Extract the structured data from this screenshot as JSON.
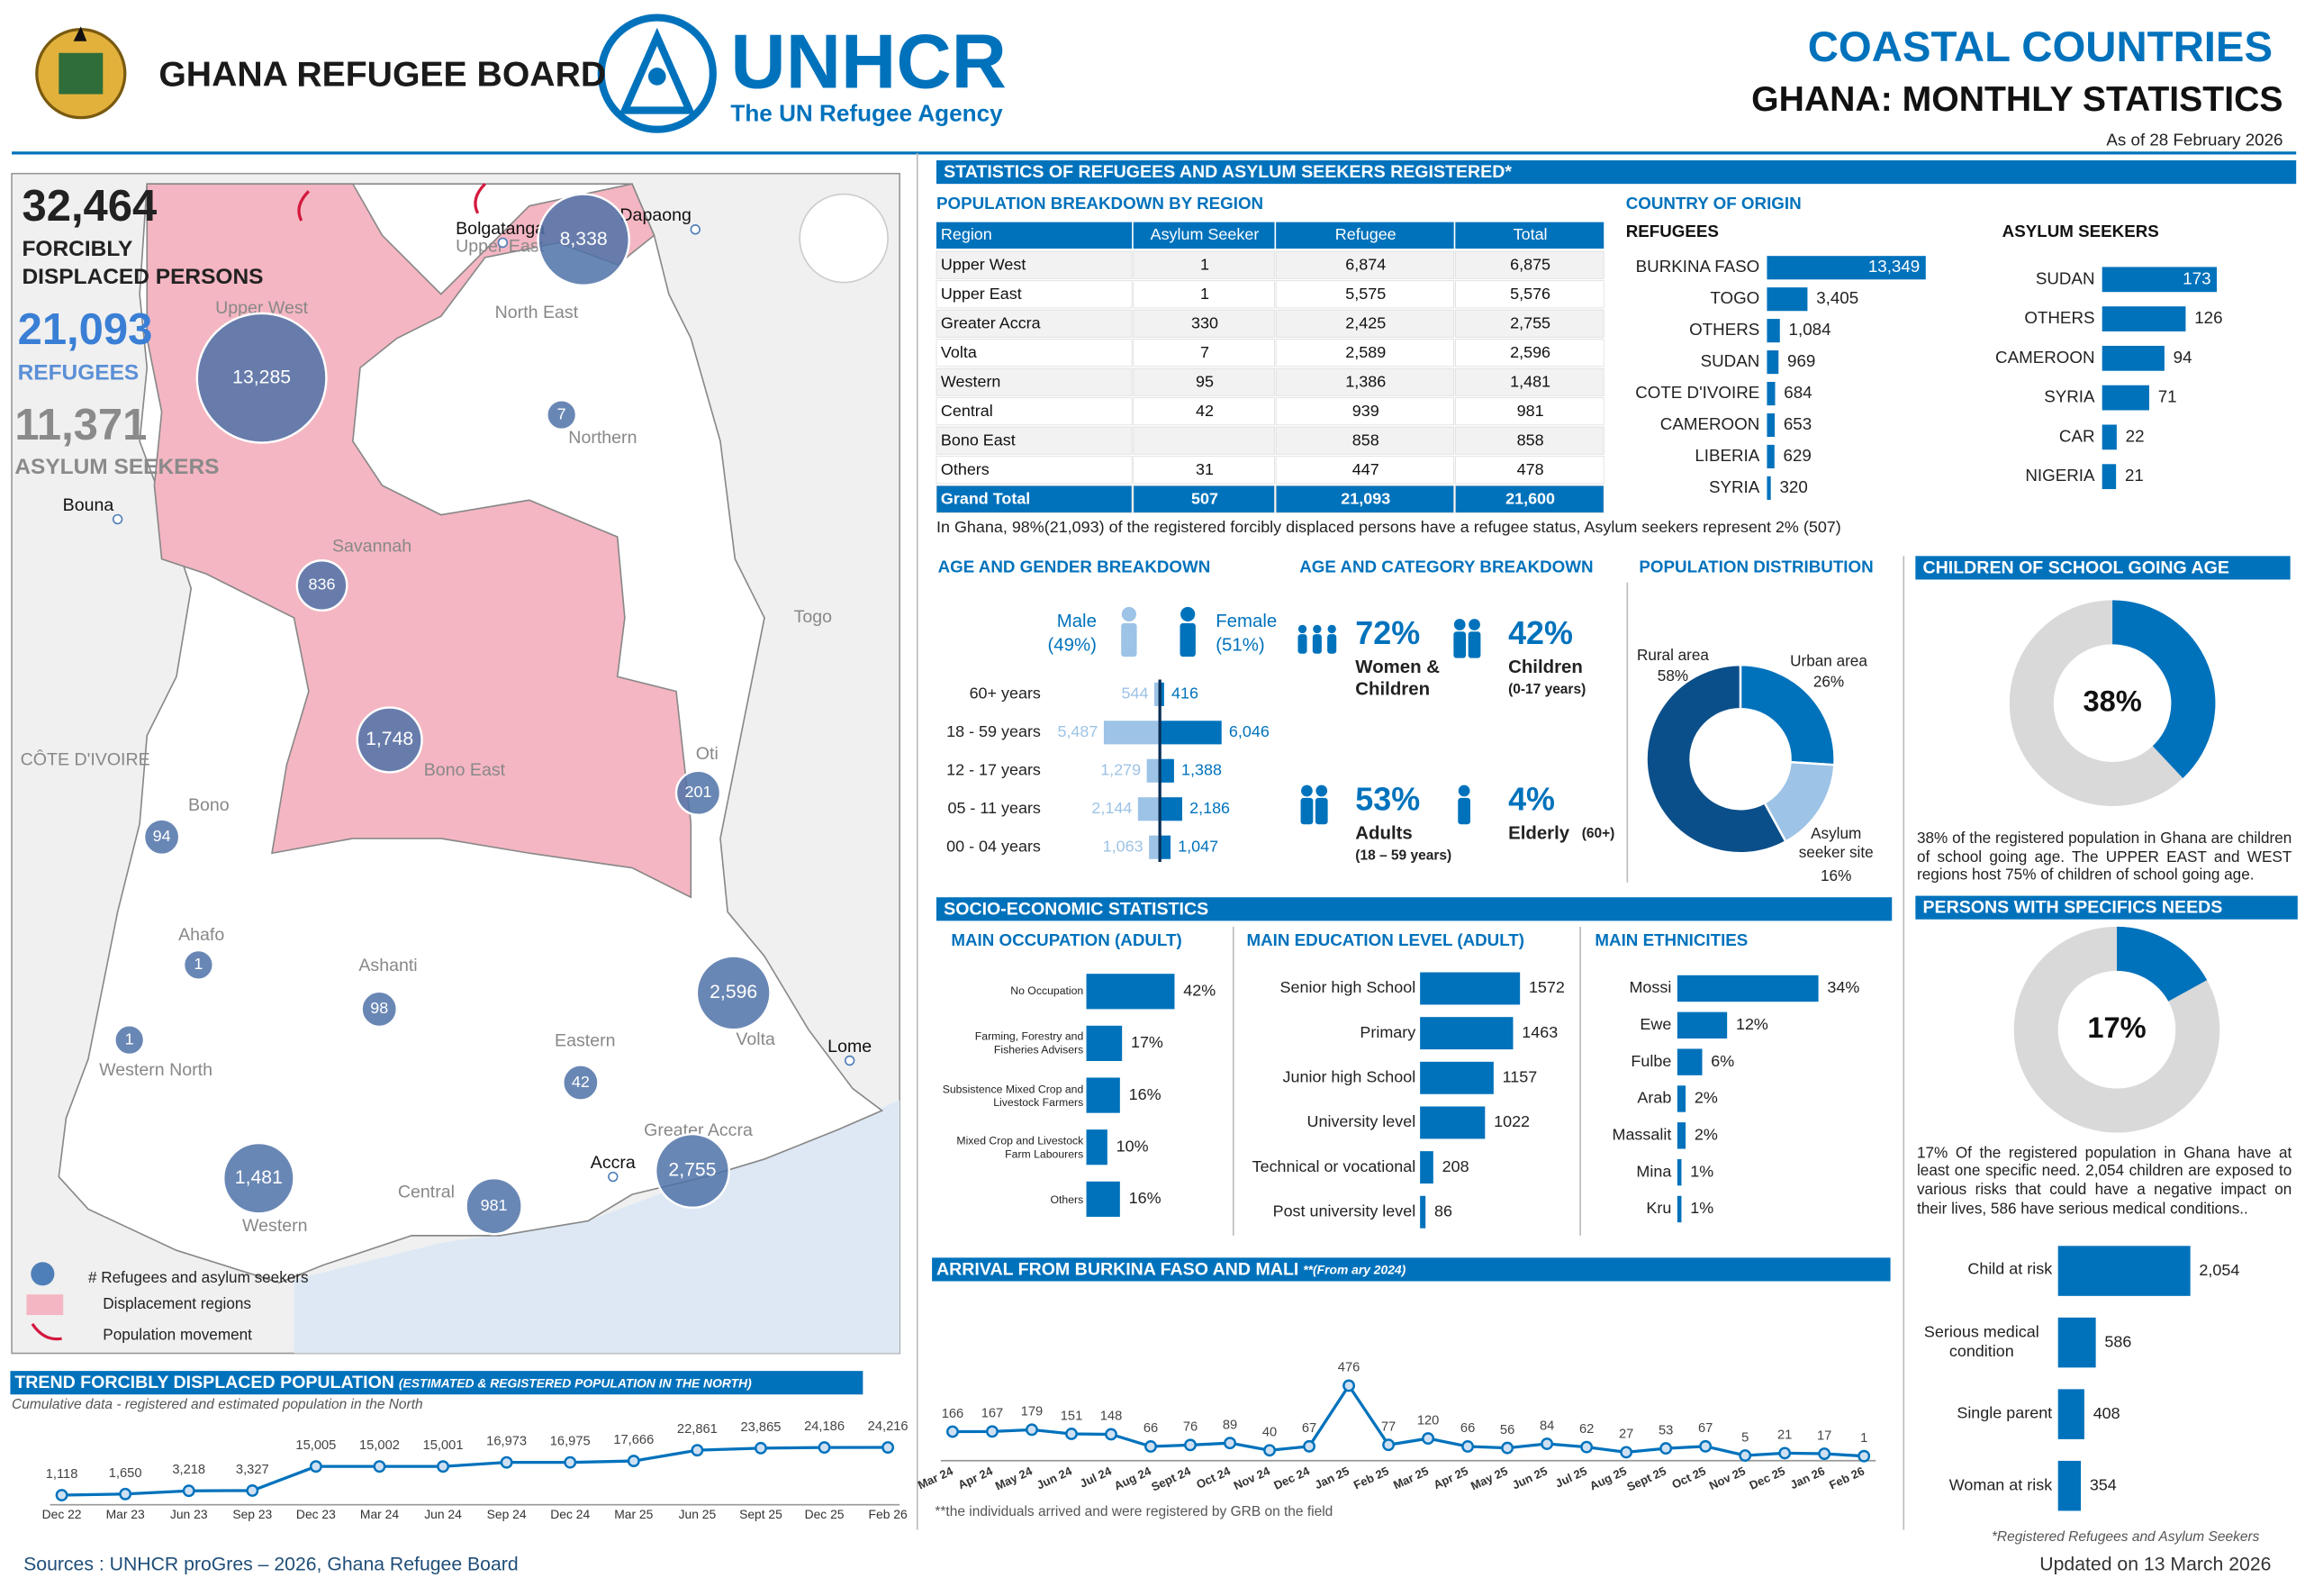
{
  "header": {
    "org1": "GHANA REFUGEE BOARD",
    "org2": "UNHCR",
    "org2_tagline": "The UN Refugee Agency",
    "title": "COASTAL COUNTRIES",
    "subtitle": "GHANA: MONTHLY STATISTICS",
    "as_of": "As of  28 February 2026"
  },
  "summary": {
    "total": "32,464",
    "total_label": [
      "FORCIBLY",
      "DISPLACED PERSONS"
    ],
    "refugees": "21,093",
    "refugees_label": "REFUGEES",
    "asylum": "11,371",
    "asylum_label": "ASYLUM SEEKERS"
  },
  "map": {
    "bubbles": [
      "13,285",
      "8,338",
      "7",
      "836",
      "1,748",
      "201",
      "94",
      "1",
      "98",
      "2,596",
      "1",
      "42",
      "1,481",
      "981",
      "2,755"
    ],
    "regions": [
      "Upper West",
      "Upper East",
      "North East",
      "Northern",
      "Savannah",
      "Bono East",
      "Bono",
      "Ahafo",
      "Ashanti",
      "Western North",
      "Eastern",
      "Oti",
      "Volta",
      "Greater Accra",
      "Central",
      "Western",
      "Togo",
      "CÔTE D'IVOIRE"
    ],
    "cities": [
      "Bolgatanga",
      "Dapaong",
      "Bouna",
      "Lome",
      "Accra"
    ],
    "legend": [
      "# Refugees and asylum seekers",
      "Displacement regions",
      "Population movement"
    ]
  },
  "sections": {
    "registered": "STATISTICS OF REFUGEES AND ASYLUM SEEKERS REGISTERED*",
    "region": "POPULATION BREAKDOWN BY REGION",
    "origin": "COUNTRY OF ORIGIN",
    "age_category": "AGE AND CATEGORY BREAKDOWN",
    "socio": "SOCIO-ECONOMIC STATISTICS"
  },
  "table": {
    "header": [
      "Region",
      "Asylum Seeker",
      "Refugee",
      "Total"
    ],
    "rows": [
      [
        "Upper West",
        "1",
        "6,874",
        "6,875"
      ],
      [
        "Upper East",
        "1",
        "5,575",
        "5,576"
      ],
      [
        "Greater Accra",
        "330",
        "2,425",
        "2,755"
      ],
      [
        "Volta",
        "7",
        "2,589",
        "2,596"
      ],
      [
        "Western",
        "95",
        "1,386",
        "1,481"
      ],
      [
        "Central",
        "42",
        "939",
        "981"
      ],
      [
        "Bono East",
        null,
        "858",
        "858"
      ],
      [
        "Others",
        "31",
        "447",
        "478"
      ],
      [
        "Grand Total",
        "507",
        "21,093",
        "21,600"
      ]
    ]
  },
  "age_category": [
    {
      "value": "72%",
      "label": "Women &",
      "sub": "Children"
    },
    {
      "value": "42%",
      "label": "Children",
      "sub": "(0-17 years)"
    },
    {
      "value": "53%",
      "label": "Adults",
      "sub": "(18 – 59 years)"
    },
    {
      "value": "4%",
      "label": "Elderly",
      "sub": "(60+)"
    }
  ],
  "notes": {
    "table": "In Ghana, 98%(21,093) of the registered forcibly displaced persons have a refugee status, Asylum seekers represent 2% (507)",
    "school": "38% of the registered population in Ghana are children of school going age. The UPPER EAST and WEST regions host 75% of children of school going age.",
    "needs": "17% Of the registered population in Ghana have at least one specific need. 2,054 children are exposed to various risks that could have a negative impact on their lives, 586 have serious medical conditions..",
    "trend": "Cumulative data - registered and estimated population in the North",
    "arrival": "**the individuals arrived and were registered by GRB on the field",
    "registered": "*Registered Refugees and Asylum Seekers"
  },
  "footer": {
    "sources": "Sources : UNHCR proGres – 2026, Ghana Refugee Board",
    "updated": "Updated on 13 March 2026"
  },
  "chart_data": [
    {
      "type": "bar",
      "title": "REFUGEES",
      "categories": [
        "BURKINA FASO",
        "TOGO",
        "OTHERS",
        "SUDAN",
        "COTE D'IVOIRE",
        "CAMEROON",
        "LIBERIA",
        "SYRIA"
      ],
      "values": [
        13349,
        3405,
        1084,
        969,
        684,
        653,
        629,
        320
      ],
      "value_labels": [
        "13,349",
        "3,405",
        "1,084",
        "969",
        "684",
        "653",
        "629",
        "320"
      ],
      "color": "#0072bc"
    },
    {
      "type": "bar",
      "title": "ASYLUM SEEKERS",
      "categories": [
        "SUDAN",
        "OTHERS",
        "CAMEROON",
        "SYRIA",
        "CAR",
        "NIGERIA"
      ],
      "values": [
        173,
        126,
        94,
        71,
        22,
        21
      ],
      "color": "#0072bc"
    },
    {
      "type": "butterfly",
      "title": "AGE AND GENDER BREAKDOWN",
      "categories": [
        "60+ years",
        "18 - 59 years",
        "12 - 17 years",
        "05 - 11 years",
        "00 - 04 years"
      ],
      "series": [
        {
          "name": "Male",
          "share": "(49%)",
          "color": "#9dc3e6",
          "values": [
            544,
            5487,
            1279,
            2144,
            1063
          ],
          "value_labels": [
            "544",
            "5,487",
            "1,279",
            "2,144",
            "1,063"
          ]
        },
        {
          "name": "Female",
          "share": "(51%)",
          "color": "#0072bc",
          "values": [
            416,
            6046,
            1388,
            2186,
            1047
          ],
          "value_labels": [
            "416",
            "6,046",
            "1,388",
            "2,186",
            "1,047"
          ]
        }
      ]
    },
    {
      "type": "donut",
      "title": "POPULATION DISTRIBUTION",
      "categories": [
        "Rural area",
        "Urban area",
        "Asylum seeker site"
      ],
      "values": [
        58,
        26,
        16
      ],
      "value_labels": [
        "58%",
        "26%",
        "16%"
      ],
      "colors": [
        "#0b4f8a",
        "#0072bc",
        "#9dc3e6"
      ]
    },
    {
      "type": "gauge",
      "title": "CHILDREN OF SCHOOL GOING AGE",
      "value": 38,
      "value_label": "38%",
      "color": "#0072bc",
      "track_color": "#d9d9d9"
    },
    {
      "type": "gauge",
      "title": "PERSONS WITH SPECIFICS NEEDS",
      "value": 17,
      "value_label": "17%",
      "color": "#0072bc",
      "track_color": "#d9d9d9"
    },
    {
      "type": "bar",
      "title": "MAIN OCCUPATION (ADULT)",
      "categories": [
        "No Occupation",
        "Farming, Forestry and Fisheries Advisers",
        "Subsistence Mixed Crop and Livestock Farmers",
        "Mixed Crop and Livestock Farm Labourers",
        "Others"
      ],
      "values": [
        42,
        17,
        16,
        10,
        16
      ],
      "value_labels": [
        "42%",
        "17%",
        "16%",
        "10%",
        "16%"
      ],
      "color": "#0072bc"
    },
    {
      "type": "bar",
      "title": "MAIN EDUCATION LEVEL (ADULT)",
      "categories": [
        "Senior high School",
        "Primary",
        "Junior high School",
        "University level",
        "Technical or vocational",
        "Post university level"
      ],
      "values": [
        1572,
        1463,
        1157,
        1022,
        208,
        86
      ],
      "color": "#0072bc"
    },
    {
      "type": "bar",
      "title": "MAIN ETHNICITIES",
      "categories": [
        "Mossi",
        "Ewe",
        "Fulbe",
        "Arab",
        "Massalit",
        "Mina",
        "Kru"
      ],
      "values": [
        34,
        12,
        6,
        2,
        2,
        1,
        1
      ],
      "value_labels": [
        "34%",
        "12%",
        "6%",
        "2%",
        "2%",
        "1%",
        "1%"
      ],
      "color": "#0072bc"
    },
    {
      "type": "line",
      "title": "ARRIVAL FROM BURKINA FASO AND MALI",
      "subtitle": "**(From ary 2024)",
      "categories": [
        "Mar 24",
        "Apr 24",
        "May 24",
        "Jun 24",
        "Jul 24",
        "Aug 24",
        "Sept 24",
        "Oct 24",
        "Nov 24",
        "Dec 24",
        "Jan 25",
        "Feb 25",
        "Mar 25",
        "Apr 25",
        "May 25",
        "Jun 25",
        "Jul 25",
        "Aug 25",
        "Sept 25",
        "Oct 25",
        "Nov 25",
        "Dec 25",
        "Jan 26",
        "Feb 26"
      ],
      "values": [
        166,
        167,
        179,
        151,
        148,
        66,
        76,
        89,
        40,
        67,
        476,
        77,
        120,
        66,
        56,
        84,
        62,
        27,
        53,
        67,
        5,
        21,
        17,
        1
      ],
      "color": "#0072bc"
    },
    {
      "type": "line",
      "title": "TREND FORCIBLY DISPLACED POPULATION",
      "subtitle": "(ESTIMATED & REGISTERED POPULATION IN THE NORTH)",
      "categories": [
        "Dec 22",
        "Mar 23",
        "Jun 23",
        "Sep 23",
        "Dec 23",
        "Mar 24",
        "Jun 24",
        "Sep 24",
        "Dec 24",
        "Mar 25",
        "Jun 25",
        "Sept 25",
        "Dec 25",
        "Feb 26"
      ],
      "values": [
        1118,
        1650,
        3218,
        3327,
        15005,
        15002,
        15001,
        16973,
        16975,
        17666,
        22861,
        23865,
        24186,
        24216
      ],
      "value_labels": [
        "1,118",
        "1,650",
        "3,218",
        "3,327",
        "15,005",
        "15,002",
        "15,001",
        "16,973",
        "16,975",
        "17,666",
        "22,861",
        "23,865",
        "24,186",
        "24,216"
      ],
      "color": "#0072bc"
    },
    {
      "type": "bar",
      "categories": [
        "Child at risk",
        "Serious medical condition",
        "Single parent",
        "Woman at risk"
      ],
      "values": [
        2054,
        586,
        408,
        354
      ],
      "value_labels": [
        "2,054",
        "586",
        "408",
        "354"
      ],
      "color": "#0072bc"
    }
  ]
}
